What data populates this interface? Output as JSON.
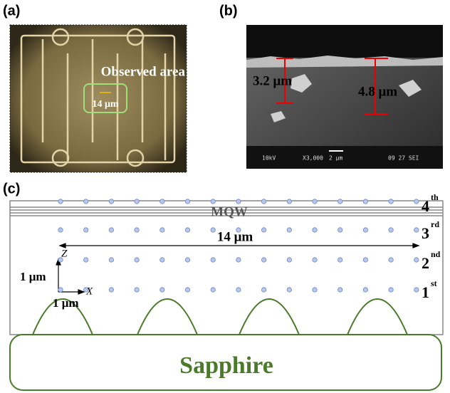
{
  "panels": {
    "a": {
      "label": "(a)",
      "annotation": "Observed area",
      "scale": "14 μm"
    },
    "b": {
      "label": "(b)",
      "thickness_left": "3.2 μm",
      "thickness_right": "4.8 μm",
      "sem_info": [
        "10kV",
        "X3,000",
        "2 μm",
        "09 27 SEI"
      ]
    },
    "c": {
      "label": "(c)",
      "mqw": "MQW",
      "layers": [
        {
          "base": "4",
          "sup": "th"
        },
        {
          "base": "3",
          "sup": "rd"
        },
        {
          "base": "2",
          "sup": "nd"
        },
        {
          "base": "1",
          "sup": "st"
        }
      ],
      "width": "14 μm",
      "z_axis": "Z",
      "z_scale": "1 μm",
      "x_axis": "X",
      "x_scale": "1 μm",
      "substrate": "Sapphire"
    }
  }
}
